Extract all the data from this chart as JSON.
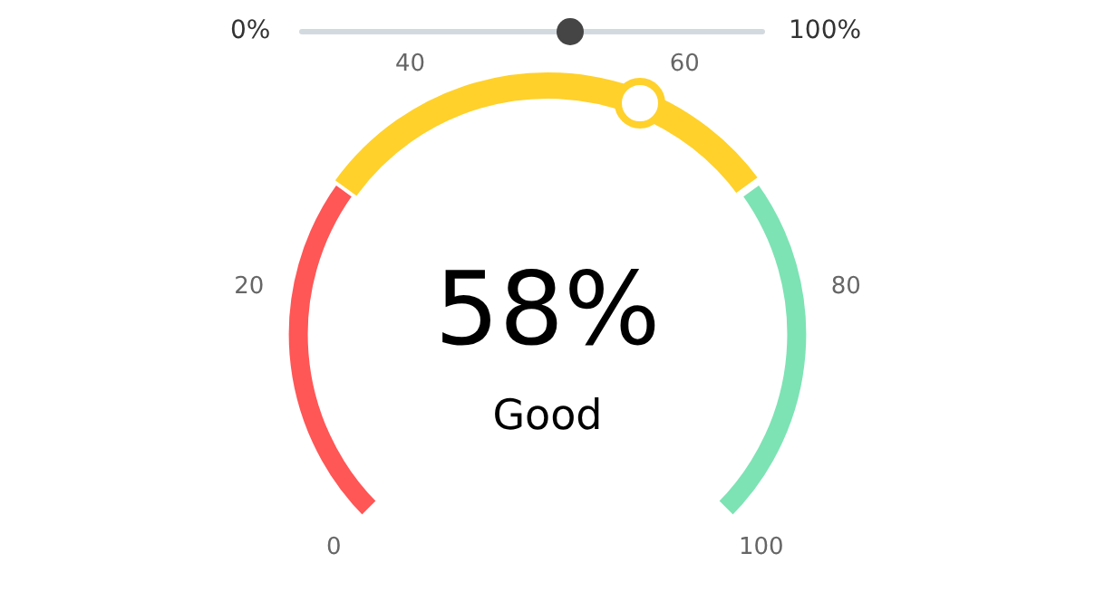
{
  "chart_data": {
    "type": "donut",
    "categories": [
      null,
      null,
      null,
      null
    ],
    "values": [
      30,
      28,
      12,
      30
    ],
    "colors": [
      "#ff5656",
      "#ffd12a",
      "#ffd12a",
      "#7de3b4"
    ],
    "annotations": [
      "58%",
      "Good",
      "0%",
      "100%",
      "0",
      "20",
      "40",
      "60",
      "80",
      "100"
    ]
  }
}
